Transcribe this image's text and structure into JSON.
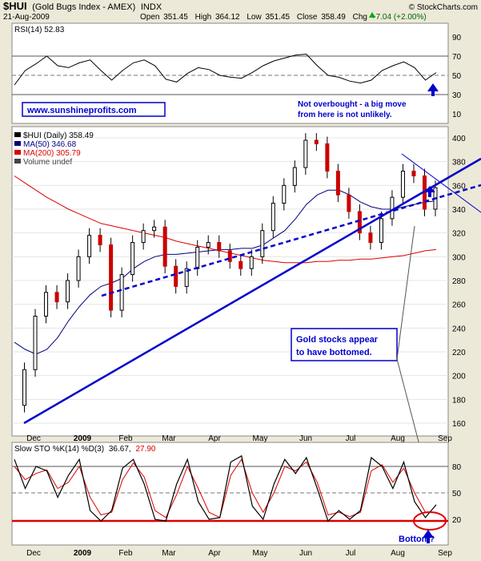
{
  "header": {
    "symbol": "$HUI",
    "name": "(Gold Bugs Index - AMEX)",
    "exchange": "INDX",
    "date": "21-Aug-2009",
    "open_label": "Open",
    "open": "351.45",
    "high_label": "High",
    "high": "364.12",
    "low_label": "Low",
    "low": "351.45",
    "close_label": "Close",
    "close": "358.49",
    "chg_label": "Chg",
    "chg": "+7.04 (+2.00%)",
    "chg_arrow": "up-triangle-icon",
    "watermark": "© StockCharts.com"
  },
  "colors": {
    "background": "#ece9d8",
    "panel": "#ffffff",
    "annotation_blue": "#0000cc",
    "ma200_red": "#dd0000",
    "candle_down": "#cc0000",
    "candle_up": "#000000",
    "ma50_navy": "#000080",
    "ellipse_red": "#dd0000"
  },
  "rsi_panel": {
    "label": "RSI(14) 52.83",
    "ticks": [
      90,
      70,
      50,
      30,
      10
    ],
    "note_line1": "Not overbought - a big move",
    "note_line2": "from here is not unlikely.",
    "website": "www.sunshineprofits.com"
  },
  "price_panel": {
    "legend": [
      {
        "text": "$HUI (Daily) 358.49",
        "color": "#000000"
      },
      {
        "text": "MA(50) 346.68",
        "color": "#000080"
      },
      {
        "text": "MA(200) 305.79",
        "color": "#dd0000"
      },
      {
        "text": "Volume undef",
        "color": "#444444"
      }
    ],
    "ticks": [
      400,
      380,
      360,
      340,
      320,
      300,
      280,
      260,
      240,
      220,
      200,
      180,
      160
    ],
    "note_line1": "Gold stocks appear",
    "note_line2": "to have bottomed."
  },
  "sto_panel": {
    "label_prefix": "Slow STO %K(14) %D(3)",
    "k_value": "36.67,",
    "d_value": "27.90",
    "ticks": [
      80,
      50,
      20
    ],
    "bottom_note": "Bottom?"
  },
  "x_axis": {
    "labels": [
      "Dec",
      "2009",
      "Feb",
      "Mar",
      "Apr",
      "May",
      "Jun",
      "Jul",
      "Aug",
      "Sep"
    ]
  },
  "chart_data": {
    "type": "line",
    "title": "$HUI (Gold Bugs Index - AMEX) INDX",
    "x": [
      "2008-11-24",
      "2008-12-01",
      "2008-12-08",
      "2008-12-15",
      "2008-12-22",
      "2008-12-29",
      "2009-01-05",
      "2009-01-12",
      "2009-01-19",
      "2009-01-26",
      "2009-02-02",
      "2009-02-09",
      "2009-02-16",
      "2009-02-23",
      "2009-03-02",
      "2009-03-09",
      "2009-03-16",
      "2009-03-23",
      "2009-03-30",
      "2009-04-06",
      "2009-04-13",
      "2009-04-20",
      "2009-04-27",
      "2009-05-04",
      "2009-05-11",
      "2009-05-18",
      "2009-05-25",
      "2009-06-01",
      "2009-06-08",
      "2009-06-15",
      "2009-06-22",
      "2009-06-29",
      "2009-07-06",
      "2009-07-13",
      "2009-07-20",
      "2009-07-27",
      "2009-08-03",
      "2009-08-10",
      "2009-08-17",
      "2009-08-21"
    ],
    "series": [
      {
        "name": "$HUI (Daily)",
        "values": [
          175,
          205,
          250,
          270,
          262,
          280,
          300,
          318,
          310,
          255,
          285,
          312,
          322,
          325,
          292,
          275,
          290,
          308,
          312,
          305,
          296,
          290,
          300,
          322,
          345,
          360,
          375,
          398,
          395,
          372,
          352,
          338,
          320,
          312,
          332,
          350,
          372,
          368,
          340,
          358
        ]
      },
      {
        "name": "MA(50)",
        "values": [
          228,
          222,
          218,
          222,
          232,
          246,
          258,
          268,
          275,
          278,
          282,
          290,
          296,
          300,
          302,
          302,
          303,
          304,
          305,
          306,
          306,
          307,
          307,
          310,
          316,
          322,
          332,
          344,
          352,
          356,
          356,
          352,
          346,
          342,
          340,
          340,
          342,
          344,
          346,
          347
        ]
      },
      {
        "name": "MA(200)",
        "values": [
          368,
          362,
          356,
          350,
          345,
          340,
          336,
          332,
          328,
          326,
          324,
          322,
          320,
          318,
          316,
          313,
          311,
          309,
          307,
          305,
          303,
          301,
          299,
          297,
          296,
          295,
          295,
          295,
          296,
          296,
          297,
          297,
          298,
          298,
          299,
          300,
          301,
          303,
          305,
          306
        ]
      }
    ],
    "ylim": [
      155,
      405
    ],
    "rsi": {
      "label": "RSI(14)",
      "ylim": [
        0,
        100
      ],
      "values": [
        40,
        55,
        62,
        70,
        60,
        58,
        63,
        66,
        55,
        45,
        55,
        63,
        66,
        60,
        46,
        43,
        52,
        58,
        56,
        50,
        48,
        47,
        53,
        60,
        65,
        68,
        71,
        72,
        60,
        50,
        48,
        44,
        42,
        45,
        55,
        60,
        64,
        58,
        45,
        52.83
      ]
    },
    "stochastic": {
      "label": "Slow STO",
      "ylim": [
        0,
        100
      ],
      "k": [
        88,
        55,
        80,
        75,
        45,
        70,
        88,
        30,
        18,
        30,
        78,
        88,
        60,
        20,
        18,
        60,
        88,
        40,
        20,
        22,
        85,
        92,
        35,
        20,
        60,
        88,
        72,
        90,
        55,
        18,
        30,
        20,
        30,
        90,
        80,
        55,
        85,
        40,
        22,
        36.67
      ],
      "d": [
        80,
        65,
        72,
        76,
        55,
        62,
        80,
        45,
        25,
        28,
        65,
        84,
        68,
        30,
        22,
        48,
        80,
        55,
        28,
        22,
        70,
        88,
        50,
        28,
        50,
        80,
        75,
        85,
        62,
        25,
        28,
        23,
        28,
        75,
        82,
        62,
        78,
        50,
        28,
        27.9
      ]
    }
  }
}
